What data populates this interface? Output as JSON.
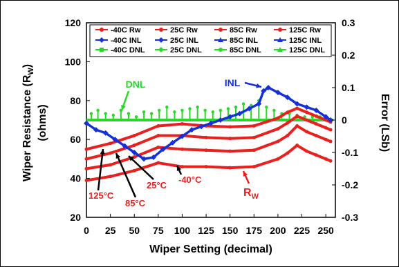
{
  "chart_data": {
    "type": "line",
    "xlabel": "Wiper Setting (decimal)",
    "ylabel_left": "Wiper Resistance (R",
    "ylabel_left_sub": "W",
    "ylabel_left_end": ")",
    "ylabel_left_unit": "(ohms)",
    "ylabel_right": "Error (LSb)",
    "xlim": [
      0,
      260
    ],
    "ylim_left": [
      20,
      120
    ],
    "ylim_right": [
      -0.3,
      0.3
    ],
    "x_ticks": [
      "0",
      "25",
      "50",
      "75",
      "100",
      "125",
      "150",
      "175",
      "200",
      "225",
      "250"
    ],
    "y_left_ticks": [
      "20",
      "40",
      "60",
      "80",
      "100",
      "120"
    ],
    "y_right_ticks": [
      "-0.3",
      "-0.2",
      "-0.1",
      "0",
      "0.1",
      "0.2",
      "0.3"
    ],
    "legend": {
      "position": "top",
      "entries": [
        {
          "name": "-40C Rw",
          "color": "#e8201e",
          "marker": "circle"
        },
        {
          "name": "25C Rw",
          "color": "#e8201e",
          "marker": "circle"
        },
        {
          "name": "85C Rw",
          "color": "#e8201e",
          "marker": "circle"
        },
        {
          "name": "125C Rw",
          "color": "#e8201e",
          "marker": "circle"
        },
        {
          "name": "-40C INL",
          "color": "#1530d8",
          "marker": "diamond"
        },
        {
          "name": "25C INL",
          "color": "#1530d8",
          "marker": "diamond"
        },
        {
          "name": "85C INL",
          "color": "#1530d8",
          "marker": "triangle"
        },
        {
          "name": "125C INL",
          "color": "#1530d8",
          "marker": "triangle"
        },
        {
          "name": "-40C DNL",
          "color": "#27d827",
          "marker": "square"
        },
        {
          "name": "25C DNL",
          "color": "#27d827",
          "marker": "diamond"
        },
        {
          "name": "85C DNL",
          "color": "#27d827",
          "marker": "circle"
        },
        {
          "name": "125C DNL",
          "color": "#27d827",
          "marker": "triangle"
        }
      ]
    },
    "rw_series": [
      {
        "temp": "-40C",
        "axis": "left",
        "x": [
          0,
          25,
          50,
          75,
          100,
          125,
          150,
          175,
          200,
          210,
          220,
          230,
          240,
          250,
          255
        ],
        "y": [
          39,
          41,
          44,
          48,
          46,
          46,
          45.5,
          46,
          50,
          53,
          57,
          54,
          52,
          50,
          49
        ]
      },
      {
        "temp": "25C",
        "axis": "left",
        "x": [
          0,
          25,
          50,
          75,
          100,
          125,
          150,
          175,
          200,
          210,
          220,
          230,
          240,
          250,
          255
        ],
        "y": [
          45,
          47,
          51,
          56,
          55,
          54.5,
          54,
          54.5,
          59,
          62,
          67,
          64,
          62,
          60,
          59
        ]
      },
      {
        "temp": "85C",
        "axis": "left",
        "x": [
          0,
          25,
          50,
          75,
          100,
          125,
          150,
          175,
          200,
          210,
          220,
          230,
          240,
          250,
          255
        ],
        "y": [
          50,
          53,
          57,
          62,
          62,
          61,
          60.5,
          61,
          65.5,
          68.5,
          72,
          70,
          68,
          66,
          65
        ]
      },
      {
        "temp": "125C",
        "axis": "left",
        "x": [
          0,
          25,
          50,
          75,
          100,
          125,
          150,
          175,
          200,
          210,
          220,
          230,
          240,
          250,
          255
        ],
        "y": [
          55,
          58,
          62,
          67,
          68,
          67,
          66.5,
          67,
          71,
          74,
          76,
          74,
          72,
          70,
          69
        ]
      }
    ],
    "inl_series": {
      "axis": "right",
      "x": [
        0,
        10,
        20,
        30,
        40,
        50,
        60,
        70,
        80,
        90,
        100,
        110,
        120,
        130,
        140,
        150,
        160,
        170,
        180,
        185,
        190,
        200,
        210,
        220,
        230,
        240,
        250,
        255
      ],
      "y": [
        -0.01,
        -0.03,
        -0.04,
        -0.06,
        -0.08,
        -0.1,
        -0.12,
        -0.115,
        -0.09,
        -0.07,
        -0.05,
        -0.03,
        -0.02,
        -0.01,
        0.0,
        0.01,
        0.02,
        0.035,
        0.05,
        0.09,
        0.1,
        0.085,
        0.07,
        0.05,
        0.04,
        0.03,
        0.01,
        0.0
      ]
    },
    "dnl_series": {
      "axis": "right",
      "baseline": 0,
      "spike_x": [
        5,
        12,
        20,
        28,
        36,
        44,
        52,
        60,
        68,
        76,
        84,
        92,
        100,
        108,
        116,
        124,
        132,
        140,
        148,
        156,
        164,
        172,
        180,
        188,
        196,
        204,
        212,
        220,
        228,
        236,
        244,
        252
      ],
      "spike_y": [
        0.02,
        0.03,
        0.02,
        0.015,
        0.03,
        0.02,
        0.01,
        0.025,
        0.02,
        0.03,
        0.04,
        0.025,
        0.03,
        0.035,
        0.04,
        0.03,
        0.025,
        0.03,
        0.035,
        0.04,
        0.05,
        0.045,
        0.06,
        0.04,
        0.03,
        0.02,
        0.02,
        0.015,
        0.01,
        0.01,
        0.01,
        0.005
      ]
    },
    "annotations": {
      "dnl": "DNL",
      "inl": "INL",
      "rw": "R",
      "rw_sub": "W",
      "t125": "125°C",
      "t85": "85°C",
      "t25": "25°C",
      "tm40": "-40°C"
    }
  }
}
